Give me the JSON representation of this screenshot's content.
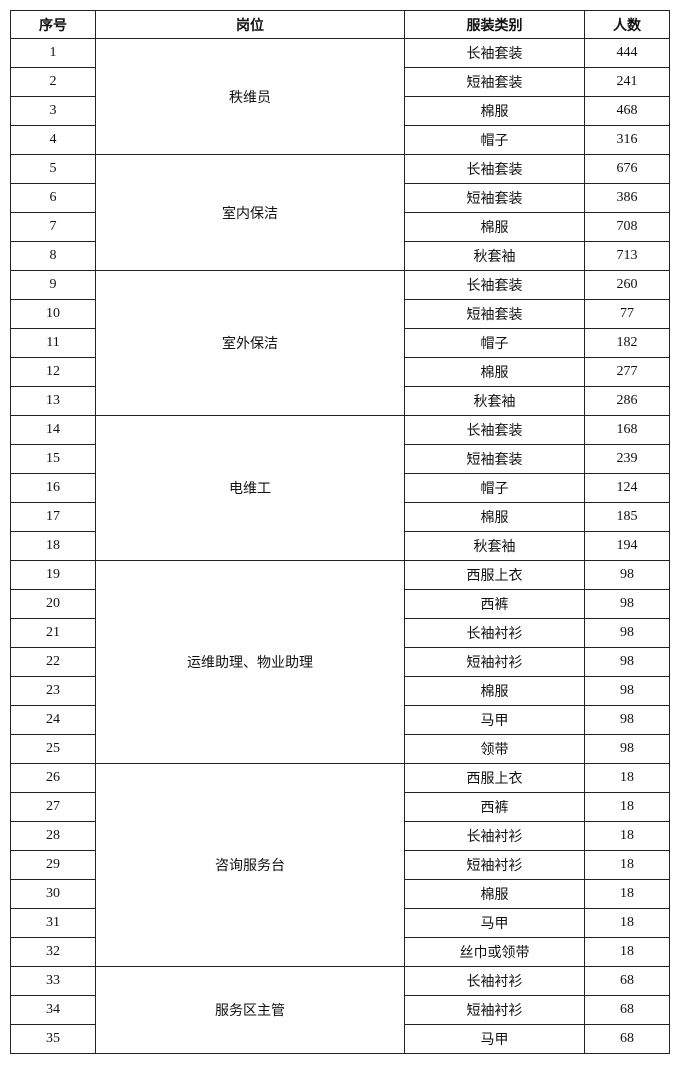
{
  "headers": [
    "序号",
    "岗位",
    "服装类别",
    "人数"
  ],
  "groups": [
    {
      "post": "秩维员",
      "items": [
        {
          "no": "1",
          "type": "长袖套装",
          "count": "444"
        },
        {
          "no": "2",
          "type": "短袖套装",
          "count": "241"
        },
        {
          "no": "3",
          "type": "棉服",
          "count": "468"
        },
        {
          "no": "4",
          "type": "帽子",
          "count": "316"
        }
      ]
    },
    {
      "post": "室内保洁",
      "items": [
        {
          "no": "5",
          "type": "长袖套装",
          "count": "676"
        },
        {
          "no": "6",
          "type": "短袖套装",
          "count": "386"
        },
        {
          "no": "7",
          "type": "棉服",
          "count": "708"
        },
        {
          "no": "8",
          "type": "秋套袖",
          "count": "713"
        }
      ]
    },
    {
      "post": "室外保洁",
      "items": [
        {
          "no": "9",
          "type": "长袖套装",
          "count": "260"
        },
        {
          "no": "10",
          "type": "短袖套装",
          "count": "77"
        },
        {
          "no": "11",
          "type": "帽子",
          "count": "182"
        },
        {
          "no": "12",
          "type": "棉服",
          "count": "277"
        },
        {
          "no": "13",
          "type": "秋套袖",
          "count": "286"
        }
      ]
    },
    {
      "post": "电维工",
      "items": [
        {
          "no": "14",
          "type": "长袖套装",
          "count": "168"
        },
        {
          "no": "15",
          "type": "短袖套装",
          "count": "239"
        },
        {
          "no": "16",
          "type": "帽子",
          "count": "124"
        },
        {
          "no": "17",
          "type": "棉服",
          "count": "185"
        },
        {
          "no": "18",
          "type": "秋套袖",
          "count": "194"
        }
      ]
    },
    {
      "post": "运维助理、物业助理",
      "items": [
        {
          "no": "19",
          "type": "西服上衣",
          "count": "98"
        },
        {
          "no": "20",
          "type": "西裤",
          "count": "98"
        },
        {
          "no": "21",
          "type": "长袖衬衫",
          "count": "98"
        },
        {
          "no": "22",
          "type": "短袖衬衫",
          "count": "98"
        },
        {
          "no": "23",
          "type": "棉服",
          "count": "98"
        },
        {
          "no": "24",
          "type": "马甲",
          "count": "98"
        },
        {
          "no": "25",
          "type": "领带",
          "count": "98"
        }
      ]
    },
    {
      "post": "咨询服务台",
      "items": [
        {
          "no": "26",
          "type": "西服上衣",
          "count": "18"
        },
        {
          "no": "27",
          "type": "西裤",
          "count": "18"
        },
        {
          "no": "28",
          "type": "长袖衬衫",
          "count": "18"
        },
        {
          "no": "29",
          "type": "短袖衬衫",
          "count": "18"
        },
        {
          "no": "30",
          "type": "棉服",
          "count": "18"
        },
        {
          "no": "31",
          "type": "马甲",
          "count": "18"
        },
        {
          "no": "32",
          "type": "丝巾或领带",
          "count": "18"
        }
      ]
    },
    {
      "post": "服务区主管",
      "items": [
        {
          "no": "33",
          "type": "长袖衬衫",
          "count": "68"
        },
        {
          "no": "34",
          "type": "短袖衬衫",
          "count": "68"
        },
        {
          "no": "35",
          "type": "马甲",
          "count": "68"
        }
      ]
    }
  ]
}
